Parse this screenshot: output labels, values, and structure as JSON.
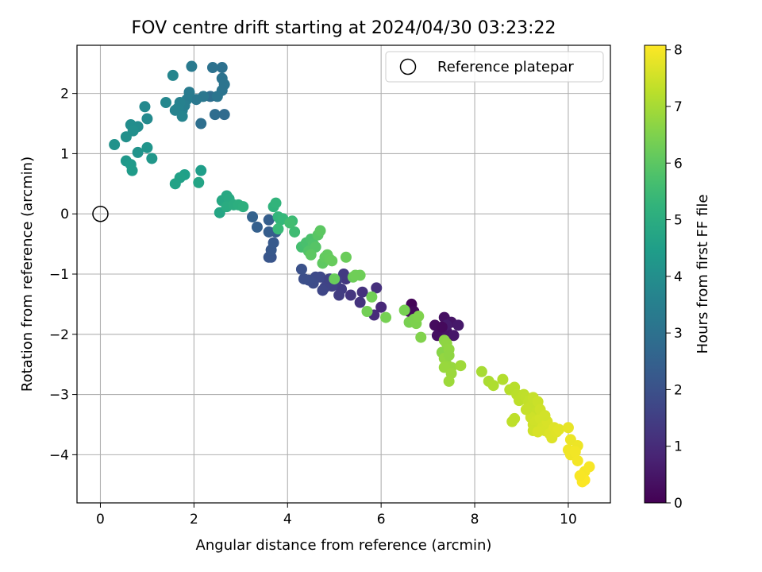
{
  "chart_data": {
    "type": "scatter",
    "title": "FOV centre drift starting at 2024/04/30 03:23:22",
    "xlabel": "Angular distance from reference (arcmin)",
    "ylabel": "Rotation from reference (arcmin)",
    "xlim": [
      -0.5,
      10.9
    ],
    "ylim": [
      -4.8,
      2.8
    ],
    "xticks": [
      0,
      2,
      4,
      6,
      8,
      10
    ],
    "yticks": [
      -4,
      -3,
      -2,
      -1,
      0,
      1,
      2
    ],
    "xtick_labels": [
      "0",
      "2",
      "4",
      "6",
      "8",
      "10"
    ],
    "ytick_labels": [
      "−4",
      "−3",
      "−2",
      "−1",
      "0",
      "1",
      "2"
    ],
    "grid": true,
    "legend": {
      "position": "top-right",
      "entries": [
        "Reference platepar"
      ]
    },
    "reference_point": {
      "x": 0,
      "y": 0,
      "label": "Reference platepar"
    },
    "colorbar": {
      "label": "Hours from first FF file",
      "colormap": "viridis",
      "range": [
        0,
        8.08
      ],
      "ticks": [
        0,
        1,
        2,
        3,
        4,
        5,
        6,
        7,
        8
      ],
      "tick_labels": [
        "0",
        "1",
        "2",
        "3",
        "4",
        "5",
        "6",
        "7",
        "8"
      ]
    },
    "points": [
      {
        "x": 6.65,
        "y": -1.5,
        "h": 0.1
      },
      {
        "x": 6.6,
        "y": -1.62,
        "h": 0.15
      },
      {
        "x": 6.7,
        "y": -1.62,
        "h": 0.2
      },
      {
        "x": 7.15,
        "y": -1.85,
        "h": 0.25
      },
      {
        "x": 7.2,
        "y": -2.02,
        "h": 0.3
      },
      {
        "x": 7.35,
        "y": -1.72,
        "h": 0.35
      },
      {
        "x": 7.4,
        "y": -1.95,
        "h": 0.4
      },
      {
        "x": 7.5,
        "y": -1.8,
        "h": 0.45
      },
      {
        "x": 7.55,
        "y": -2.02,
        "h": 0.5
      },
      {
        "x": 7.65,
        "y": -1.85,
        "h": 0.55
      },
      {
        "x": 7.4,
        "y": -1.85,
        "h": 0.6
      },
      {
        "x": 7.3,
        "y": -1.88,
        "h": 0.2
      },
      {
        "x": 6.0,
        "y": -1.55,
        "h": 0.9
      },
      {
        "x": 5.85,
        "y": -1.68,
        "h": 1.0
      },
      {
        "x": 5.9,
        "y": -1.23,
        "h": 1.1
      },
      {
        "x": 5.6,
        "y": -1.3,
        "h": 1.15
      },
      {
        "x": 5.55,
        "y": -1.47,
        "h": 1.2
      },
      {
        "x": 5.35,
        "y": -1.35,
        "h": 1.25
      },
      {
        "x": 5.25,
        "y": -1.08,
        "h": 1.3
      },
      {
        "x": 5.2,
        "y": -1.0,
        "h": 1.35
      },
      {
        "x": 5.15,
        "y": -1.25,
        "h": 1.4
      },
      {
        "x": 5.1,
        "y": -1.35,
        "h": 1.45
      },
      {
        "x": 5.05,
        "y": -1.1,
        "h": 1.5
      },
      {
        "x": 4.95,
        "y": -1.2,
        "h": 1.55
      },
      {
        "x": 4.85,
        "y": -1.15,
        "h": 1.6
      },
      {
        "x": 4.8,
        "y": -1.22,
        "h": 1.65
      },
      {
        "x": 4.75,
        "y": -1.27,
        "h": 1.7
      },
      {
        "x": 4.7,
        "y": -1.05,
        "h": 1.75
      },
      {
        "x": 4.6,
        "y": -1.05,
        "h": 1.8
      },
      {
        "x": 4.55,
        "y": -1.15,
        "h": 1.85
      },
      {
        "x": 4.45,
        "y": -1.1,
        "h": 1.9
      },
      {
        "x": 4.35,
        "y": -1.08,
        "h": 1.95
      },
      {
        "x": 4.3,
        "y": -0.92,
        "h": 2.0
      },
      {
        "x": 4.9,
        "y": -1.08,
        "h": 1.6
      },
      {
        "x": 3.65,
        "y": -0.72,
        "h": 2.1
      },
      {
        "x": 3.6,
        "y": -0.72,
        "h": 2.15
      },
      {
        "x": 3.65,
        "y": -0.6,
        "h": 2.2
      },
      {
        "x": 3.7,
        "y": -0.48,
        "h": 2.25
      },
      {
        "x": 3.75,
        "y": -0.3,
        "h": 2.3
      },
      {
        "x": 3.6,
        "y": -0.3,
        "h": 2.35
      },
      {
        "x": 3.6,
        "y": -0.1,
        "h": 2.4
      },
      {
        "x": 3.35,
        "y": -0.22,
        "h": 2.45
      },
      {
        "x": 3.25,
        "y": -0.05,
        "h": 2.5
      },
      {
        "x": 2.65,
        "y": 1.65,
        "h": 2.8
      },
      {
        "x": 2.45,
        "y": 1.65,
        "h": 2.85
      },
      {
        "x": 2.35,
        "y": 1.95,
        "h": 2.9
      },
      {
        "x": 2.15,
        "y": 1.5,
        "h": 2.95
      },
      {
        "x": 2.6,
        "y": 2.43,
        "h": 3.0
      },
      {
        "x": 2.4,
        "y": 2.43,
        "h": 3.05
      },
      {
        "x": 2.6,
        "y": 2.25,
        "h": 3.08
      },
      {
        "x": 2.65,
        "y": 2.15,
        "h": 3.1
      },
      {
        "x": 2.6,
        "y": 2.05,
        "h": 3.12
      },
      {
        "x": 2.5,
        "y": 1.95,
        "h": 3.15
      },
      {
        "x": 2.2,
        "y": 1.95,
        "h": 3.2
      },
      {
        "x": 2.05,
        "y": 1.9,
        "h": 3.25
      },
      {
        "x": 1.95,
        "y": 2.45,
        "h": 3.3
      },
      {
        "x": 1.9,
        "y": 2.02,
        "h": 3.35
      },
      {
        "x": 1.85,
        "y": 1.9,
        "h": 3.4
      },
      {
        "x": 1.8,
        "y": 1.8,
        "h": 3.45
      },
      {
        "x": 1.75,
        "y": 1.72,
        "h": 3.5
      },
      {
        "x": 1.7,
        "y": 1.85,
        "h": 3.55
      },
      {
        "x": 1.65,
        "y": 1.75,
        "h": 3.6
      },
      {
        "x": 1.6,
        "y": 1.72,
        "h": 3.62
      },
      {
        "x": 1.75,
        "y": 1.62,
        "h": 3.65
      },
      {
        "x": 1.55,
        "y": 2.3,
        "h": 3.7
      },
      {
        "x": 1.4,
        "y": 1.85,
        "h": 3.75
      },
      {
        "x": 0.95,
        "y": 1.78,
        "h": 3.8
      },
      {
        "x": 1.0,
        "y": 1.58,
        "h": 3.85
      },
      {
        "x": 0.8,
        "y": 1.45,
        "h": 3.9
      },
      {
        "x": 0.65,
        "y": 1.48,
        "h": 3.95
      },
      {
        "x": 0.7,
        "y": 1.38,
        "h": 4.0
      },
      {
        "x": 0.55,
        "y": 1.28,
        "h": 4.05
      },
      {
        "x": 0.3,
        "y": 1.15,
        "h": 4.1
      },
      {
        "x": 0.8,
        "y": 1.02,
        "h": 4.15
      },
      {
        "x": 1.0,
        "y": 1.1,
        "h": 4.2
      },
      {
        "x": 1.1,
        "y": 0.92,
        "h": 4.25
      },
      {
        "x": 0.55,
        "y": 0.88,
        "h": 4.3
      },
      {
        "x": 0.65,
        "y": 0.82,
        "h": 4.35
      },
      {
        "x": 0.68,
        "y": 0.72,
        "h": 4.4
      },
      {
        "x": 2.15,
        "y": 0.72,
        "h": 4.5
      },
      {
        "x": 1.8,
        "y": 0.65,
        "h": 4.55
      },
      {
        "x": 1.7,
        "y": 0.6,
        "h": 4.6
      },
      {
        "x": 1.6,
        "y": 0.5,
        "h": 4.65
      },
      {
        "x": 2.1,
        "y": 0.52,
        "h": 4.7
      },
      {
        "x": 2.55,
        "y": 0.02,
        "h": 4.75
      },
      {
        "x": 2.6,
        "y": 0.22,
        "h": 4.8
      },
      {
        "x": 2.7,
        "y": 0.3,
        "h": 4.85
      },
      {
        "x": 2.75,
        "y": 0.25,
        "h": 4.9
      },
      {
        "x": 2.7,
        "y": 0.12,
        "h": 4.95
      },
      {
        "x": 2.85,
        "y": 0.15,
        "h": 5.0
      },
      {
        "x": 2.95,
        "y": 0.15,
        "h": 5.05
      },
      {
        "x": 3.05,
        "y": 0.12,
        "h": 5.1
      },
      {
        "x": 3.7,
        "y": 0.12,
        "h": 5.2
      },
      {
        "x": 3.75,
        "y": 0.18,
        "h": 5.25
      },
      {
        "x": 3.8,
        "y": -0.05,
        "h": 5.3
      },
      {
        "x": 3.85,
        "y": -0.1,
        "h": 5.35
      },
      {
        "x": 3.9,
        "y": -0.08,
        "h": 5.4
      },
      {
        "x": 3.8,
        "y": -0.25,
        "h": 5.45
      },
      {
        "x": 4.1,
        "y": -0.12,
        "h": 5.5
      },
      {
        "x": 4.15,
        "y": -0.3,
        "h": 5.55
      },
      {
        "x": 4.05,
        "y": -0.15,
        "h": 5.6
      },
      {
        "x": 4.3,
        "y": -0.55,
        "h": 5.65
      },
      {
        "x": 4.4,
        "y": -0.48,
        "h": 5.7
      },
      {
        "x": 4.5,
        "y": -0.42,
        "h": 5.75
      },
      {
        "x": 4.55,
        "y": -0.5,
        "h": 5.8
      },
      {
        "x": 4.45,
        "y": -0.62,
        "h": 5.85
      },
      {
        "x": 4.6,
        "y": -0.55,
        "h": 5.9
      },
      {
        "x": 4.65,
        "y": -0.35,
        "h": 5.95
      },
      {
        "x": 4.7,
        "y": -0.28,
        "h": 6.0
      },
      {
        "x": 4.5,
        "y": -0.68,
        "h": 6.02
      },
      {
        "x": 4.75,
        "y": -0.82,
        "h": 6.05
      },
      {
        "x": 4.8,
        "y": -0.72,
        "h": 6.1
      },
      {
        "x": 4.85,
        "y": -0.68,
        "h": 6.12
      },
      {
        "x": 4.9,
        "y": -0.75,
        "h": 6.15
      },
      {
        "x": 4.95,
        "y": -0.78,
        "h": 6.18
      },
      {
        "x": 5.0,
        "y": -1.08,
        "h": 6.2
      },
      {
        "x": 5.25,
        "y": -0.72,
        "h": 6.22
      },
      {
        "x": 5.4,
        "y": -1.05,
        "h": 6.25
      },
      {
        "x": 5.55,
        "y": -1.02,
        "h": 6.28
      },
      {
        "x": 5.45,
        "y": -1.02,
        "h": 6.3
      },
      {
        "x": 5.8,
        "y": -1.38,
        "h": 6.32
      },
      {
        "x": 5.7,
        "y": -1.62,
        "h": 6.35
      },
      {
        "x": 6.1,
        "y": -1.72,
        "h": 6.38
      },
      {
        "x": 6.5,
        "y": -1.6,
        "h": 6.4
      },
      {
        "x": 6.6,
        "y": -1.8,
        "h": 6.42
      },
      {
        "x": 6.7,
        "y": -1.75,
        "h": 6.45
      },
      {
        "x": 6.75,
        "y": -1.82,
        "h": 6.48
      },
      {
        "x": 6.8,
        "y": -1.7,
        "h": 6.5
      },
      {
        "x": 6.85,
        "y": -2.05,
        "h": 6.52
      },
      {
        "x": 7.3,
        "y": -2.3,
        "h": 6.6
      },
      {
        "x": 7.35,
        "y": -2.1,
        "h": 6.65
      },
      {
        "x": 7.4,
        "y": -2.15,
        "h": 6.7
      },
      {
        "x": 7.45,
        "y": -2.25,
        "h": 6.72
      },
      {
        "x": 7.35,
        "y": -2.4,
        "h": 6.75
      },
      {
        "x": 7.4,
        "y": -2.5,
        "h": 6.78
      },
      {
        "x": 7.5,
        "y": -2.55,
        "h": 6.8
      },
      {
        "x": 7.35,
        "y": -2.55,
        "h": 6.82
      },
      {
        "x": 7.5,
        "y": -2.65,
        "h": 6.85
      },
      {
        "x": 7.45,
        "y": -2.78,
        "h": 6.88
      },
      {
        "x": 7.7,
        "y": -2.52,
        "h": 6.9
      },
      {
        "x": 7.45,
        "y": -2.35,
        "h": 6.7
      },
      {
        "x": 8.15,
        "y": -2.62,
        "h": 7.0
      },
      {
        "x": 8.3,
        "y": -2.78,
        "h": 7.05
      },
      {
        "x": 8.4,
        "y": -2.85,
        "h": 7.1
      },
      {
        "x": 8.6,
        "y": -2.75,
        "h": 7.15
      },
      {
        "x": 8.75,
        "y": -2.92,
        "h": 7.2
      },
      {
        "x": 8.85,
        "y": -2.88,
        "h": 7.22
      },
      {
        "x": 8.9,
        "y": -3.0,
        "h": 7.25
      },
      {
        "x": 8.95,
        "y": -3.1,
        "h": 7.28
      },
      {
        "x": 9.05,
        "y": -3.0,
        "h": 7.3
      },
      {
        "x": 9.1,
        "y": -3.05,
        "h": 7.32
      },
      {
        "x": 9.15,
        "y": -3.12,
        "h": 7.35
      },
      {
        "x": 9.2,
        "y": -3.2,
        "h": 7.38
      },
      {
        "x": 9.25,
        "y": -3.05,
        "h": 7.4
      },
      {
        "x": 9.3,
        "y": -3.3,
        "h": 7.42
      },
      {
        "x": 9.35,
        "y": -3.12,
        "h": 7.45
      },
      {
        "x": 9.2,
        "y": -3.38,
        "h": 7.48
      },
      {
        "x": 9.25,
        "y": -3.5,
        "h": 7.5
      },
      {
        "x": 9.3,
        "y": -3.45,
        "h": 7.52
      },
      {
        "x": 9.4,
        "y": -3.4,
        "h": 7.55
      },
      {
        "x": 9.45,
        "y": -3.55,
        "h": 7.58
      },
      {
        "x": 9.5,
        "y": -3.6,
        "h": 7.6
      },
      {
        "x": 9.55,
        "y": -3.45,
        "h": 7.62
      },
      {
        "x": 9.6,
        "y": -3.65,
        "h": 7.65
      },
      {
        "x": 9.65,
        "y": -3.72,
        "h": 7.68
      },
      {
        "x": 9.7,
        "y": -3.55,
        "h": 7.7
      },
      {
        "x": 9.75,
        "y": -3.62,
        "h": 7.72
      },
      {
        "x": 9.8,
        "y": -3.58,
        "h": 7.74
      },
      {
        "x": 9.25,
        "y": -3.6,
        "h": 7.5
      },
      {
        "x": 8.85,
        "y": -3.4,
        "h": 7.3
      },
      {
        "x": 8.8,
        "y": -3.45,
        "h": 7.3
      },
      {
        "x": 9.1,
        "y": -3.25,
        "h": 7.4
      },
      {
        "x": 9.4,
        "y": -3.25,
        "h": 7.5
      },
      {
        "x": 9.5,
        "y": -3.35,
        "h": 7.55
      },
      {
        "x": 9.35,
        "y": -3.62,
        "h": 7.6
      },
      {
        "x": 10.0,
        "y": -3.55,
        "h": 7.8
      },
      {
        "x": 10.05,
        "y": -3.75,
        "h": 7.85
      },
      {
        "x": 10.2,
        "y": -3.85,
        "h": 7.88
      },
      {
        "x": 10.0,
        "y": -3.92,
        "h": 7.9
      },
      {
        "x": 10.05,
        "y": -4.0,
        "h": 7.92
      },
      {
        "x": 10.15,
        "y": -3.95,
        "h": 7.94
      },
      {
        "x": 10.2,
        "y": -4.1,
        "h": 7.96
      },
      {
        "x": 10.35,
        "y": -4.28,
        "h": 7.98
      },
      {
        "x": 10.45,
        "y": -4.2,
        "h": 8.0
      },
      {
        "x": 10.3,
        "y": -4.45,
        "h": 8.05
      },
      {
        "x": 10.35,
        "y": -4.42,
        "h": 8.05
      },
      {
        "x": 10.25,
        "y": -4.35,
        "h": 8.02
      }
    ]
  }
}
